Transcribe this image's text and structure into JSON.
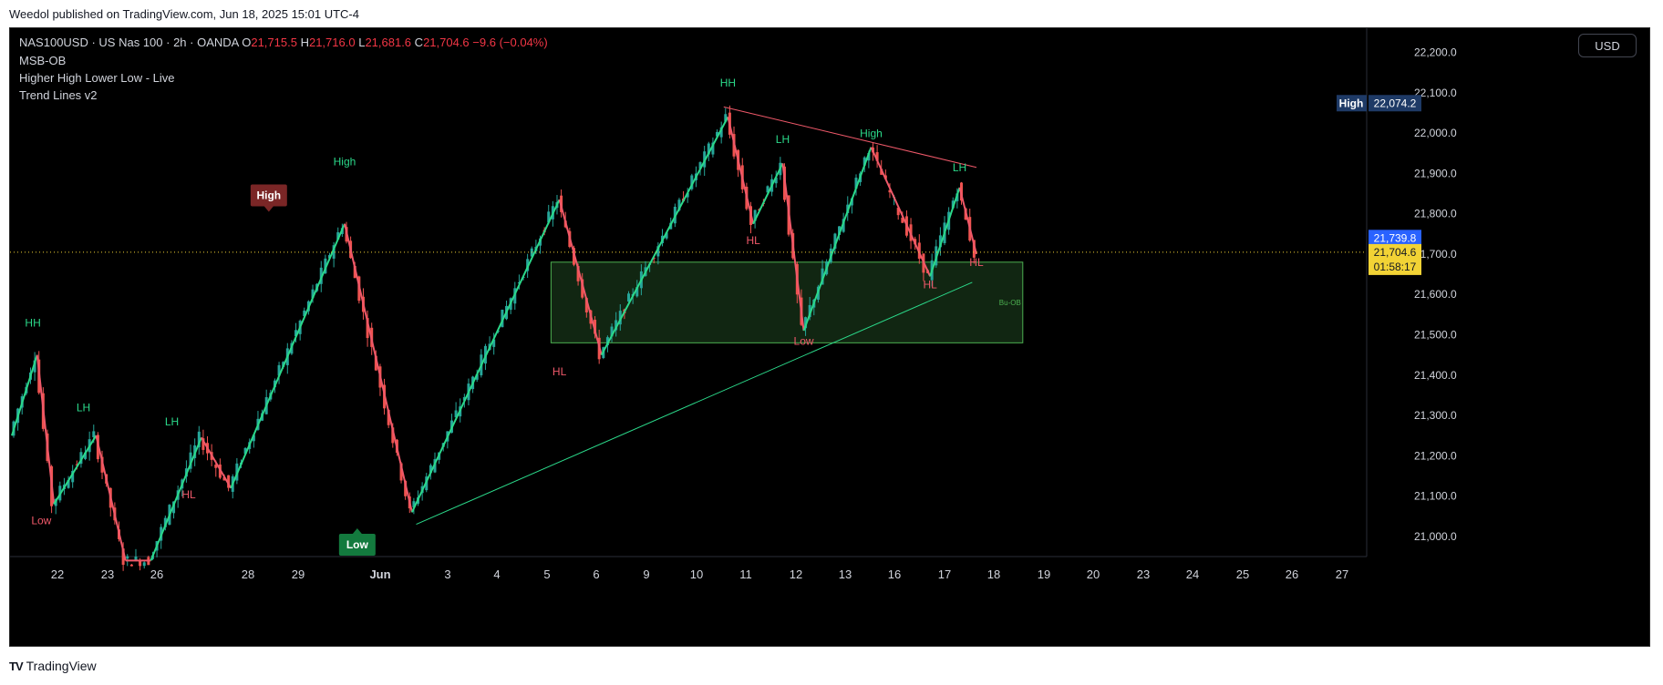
{
  "header": {
    "published_text": "Weedol published on TradingView.com, Jun 18, 2025 15:01 UTC-4"
  },
  "legend": {
    "symbol": "NAS100USD · US Nas 100 · 2h · OANDA",
    "o_label": "O",
    "o_value": "21,715.5",
    "h_label": "H",
    "h_value": "21,716.0",
    "l_label": "L",
    "l_value": "21,681.6",
    "c_label": "C",
    "c_value": "21,704.6",
    "change": "−9.6 (−0.04%)",
    "indicators": [
      "MSB-OB",
      "Higher High Lower Low - Live",
      "Trend Lines v2"
    ]
  },
  "currency_button": "USD",
  "footer": {
    "logo_text": "TV",
    "brand": "TradingView"
  },
  "colors": {
    "up": "#26a69a",
    "down": "#ef5350",
    "zig_up": "#2bd98a",
    "zig_down": "#f0596a",
    "accent_label": "#1e3a66",
    "current_price": "#f2d335",
    "alert_price": "#2962ff"
  },
  "chart_data": {
    "type": "candlestick",
    "ylim": [
      20950,
      22260
    ],
    "x_ticks": [
      "22",
      "23",
      "26",
      "28",
      "29",
      "Jun",
      "3",
      "4",
      "5",
      "6",
      "9",
      "10",
      "11",
      "12",
      "13",
      "16",
      "17",
      "18",
      "19",
      "20",
      "23",
      "24",
      "25",
      "26",
      "27"
    ],
    "y_ticks": [
      "21,000.0",
      "21,100.0",
      "21,200.0",
      "21,300.0",
      "21,400.0",
      "21,500.0",
      "21,600.0",
      "21,700.0",
      "21,800.0",
      "21,900.0",
      "22,000.0",
      "22,100.0",
      "22,200.0"
    ],
    "price_labels": {
      "high_tag": "High",
      "high_value": "22,074.2",
      "alert_value": "21,739.8",
      "current_value": "21,704.6",
      "countdown": "01:58:17"
    },
    "current_price": 21704.6,
    "zigzag": [
      {
        "i": 0,
        "p": 21250
      },
      {
        "i": 6,
        "p": 21450
      },
      {
        "i": 10,
        "p": 21080
      },
      {
        "i": 20,
        "p": 21250
      },
      {
        "i": 27,
        "p": 20940
      },
      {
        "i": 33,
        "p": 20940
      },
      {
        "i": 45,
        "p": 21245
      },
      {
        "i": 52,
        "p": 21120
      },
      {
        "i": 79,
        "p": 21775
      },
      {
        "i": 95,
        "p": 21060
      },
      {
        "i": 130,
        "p": 21835
      },
      {
        "i": 140,
        "p": 21450
      },
      {
        "i": 170,
        "p": 22040
      },
      {
        "i": 176,
        "p": 21775
      },
      {
        "i": 183,
        "p": 21925
      },
      {
        "i": 188,
        "p": 21510
      },
      {
        "i": 204,
        "p": 21965
      },
      {
        "i": 218,
        "p": 21645
      },
      {
        "i": 225,
        "p": 21865
      },
      {
        "i": 229,
        "p": 21700
      }
    ],
    "trend_lines": [
      {
        "i1": 169,
        "p1": 22065,
        "i2": 229,
        "p2": 21915,
        "color": "#f0596a"
      },
      {
        "i1": 96,
        "p1": 21030,
        "i2": 228,
        "p2": 21630,
        "color": "#2bd98a"
      }
    ],
    "order_block": {
      "i1": 128,
      "i2": 240,
      "top": 21680,
      "bottom": 21480,
      "label": "Bu-OB"
    },
    "pivot_labels": [
      {
        "text": "HH",
        "i": 5,
        "p": 21520,
        "color": "#2bd98a"
      },
      {
        "text": "Low",
        "i": 7,
        "p": 21030,
        "color": "#f0596a"
      },
      {
        "text": "LH",
        "i": 17,
        "p": 21310,
        "color": "#2bd98a"
      },
      {
        "text": "LH",
        "i": 38,
        "p": 21275,
        "color": "#2bd98a"
      },
      {
        "text": "HL",
        "i": 42,
        "p": 21095,
        "color": "#f0596a"
      },
      {
        "text": "High",
        "i": 79,
        "p": 21920,
        "color": "#2bd98a"
      },
      {
        "text": "HL",
        "i": 130,
        "p": 21400,
        "color": "#f0596a"
      },
      {
        "text": "HH",
        "i": 170,
        "p": 22115,
        "color": "#2bd98a"
      },
      {
        "text": "LH",
        "i": 183,
        "p": 21975,
        "color": "#2bd98a"
      },
      {
        "text": "HL",
        "i": 176,
        "p": 21725,
        "color": "#f0596a"
      },
      {
        "text": "Low",
        "i": 188,
        "p": 21475,
        "color": "#f0596a"
      },
      {
        "text": "High",
        "i": 204,
        "p": 21990,
        "color": "#2bd98a"
      },
      {
        "text": "HL",
        "i": 218,
        "p": 21615,
        "color": "#f0596a"
      },
      {
        "text": "LH",
        "i": 225,
        "p": 21905,
        "color": "#2bd98a"
      },
      {
        "text": "HL",
        "i": 229,
        "p": 21670,
        "color": "#f0596a"
      }
    ],
    "boxed_labels": [
      {
        "text": "High",
        "i": 61,
        "p": 21805,
        "bg": "#7a2626",
        "dir": "down"
      },
      {
        "text": "Low",
        "i": 82,
        "p": 21020,
        "bg": "#137a3e",
        "dir": "up"
      }
    ]
  }
}
